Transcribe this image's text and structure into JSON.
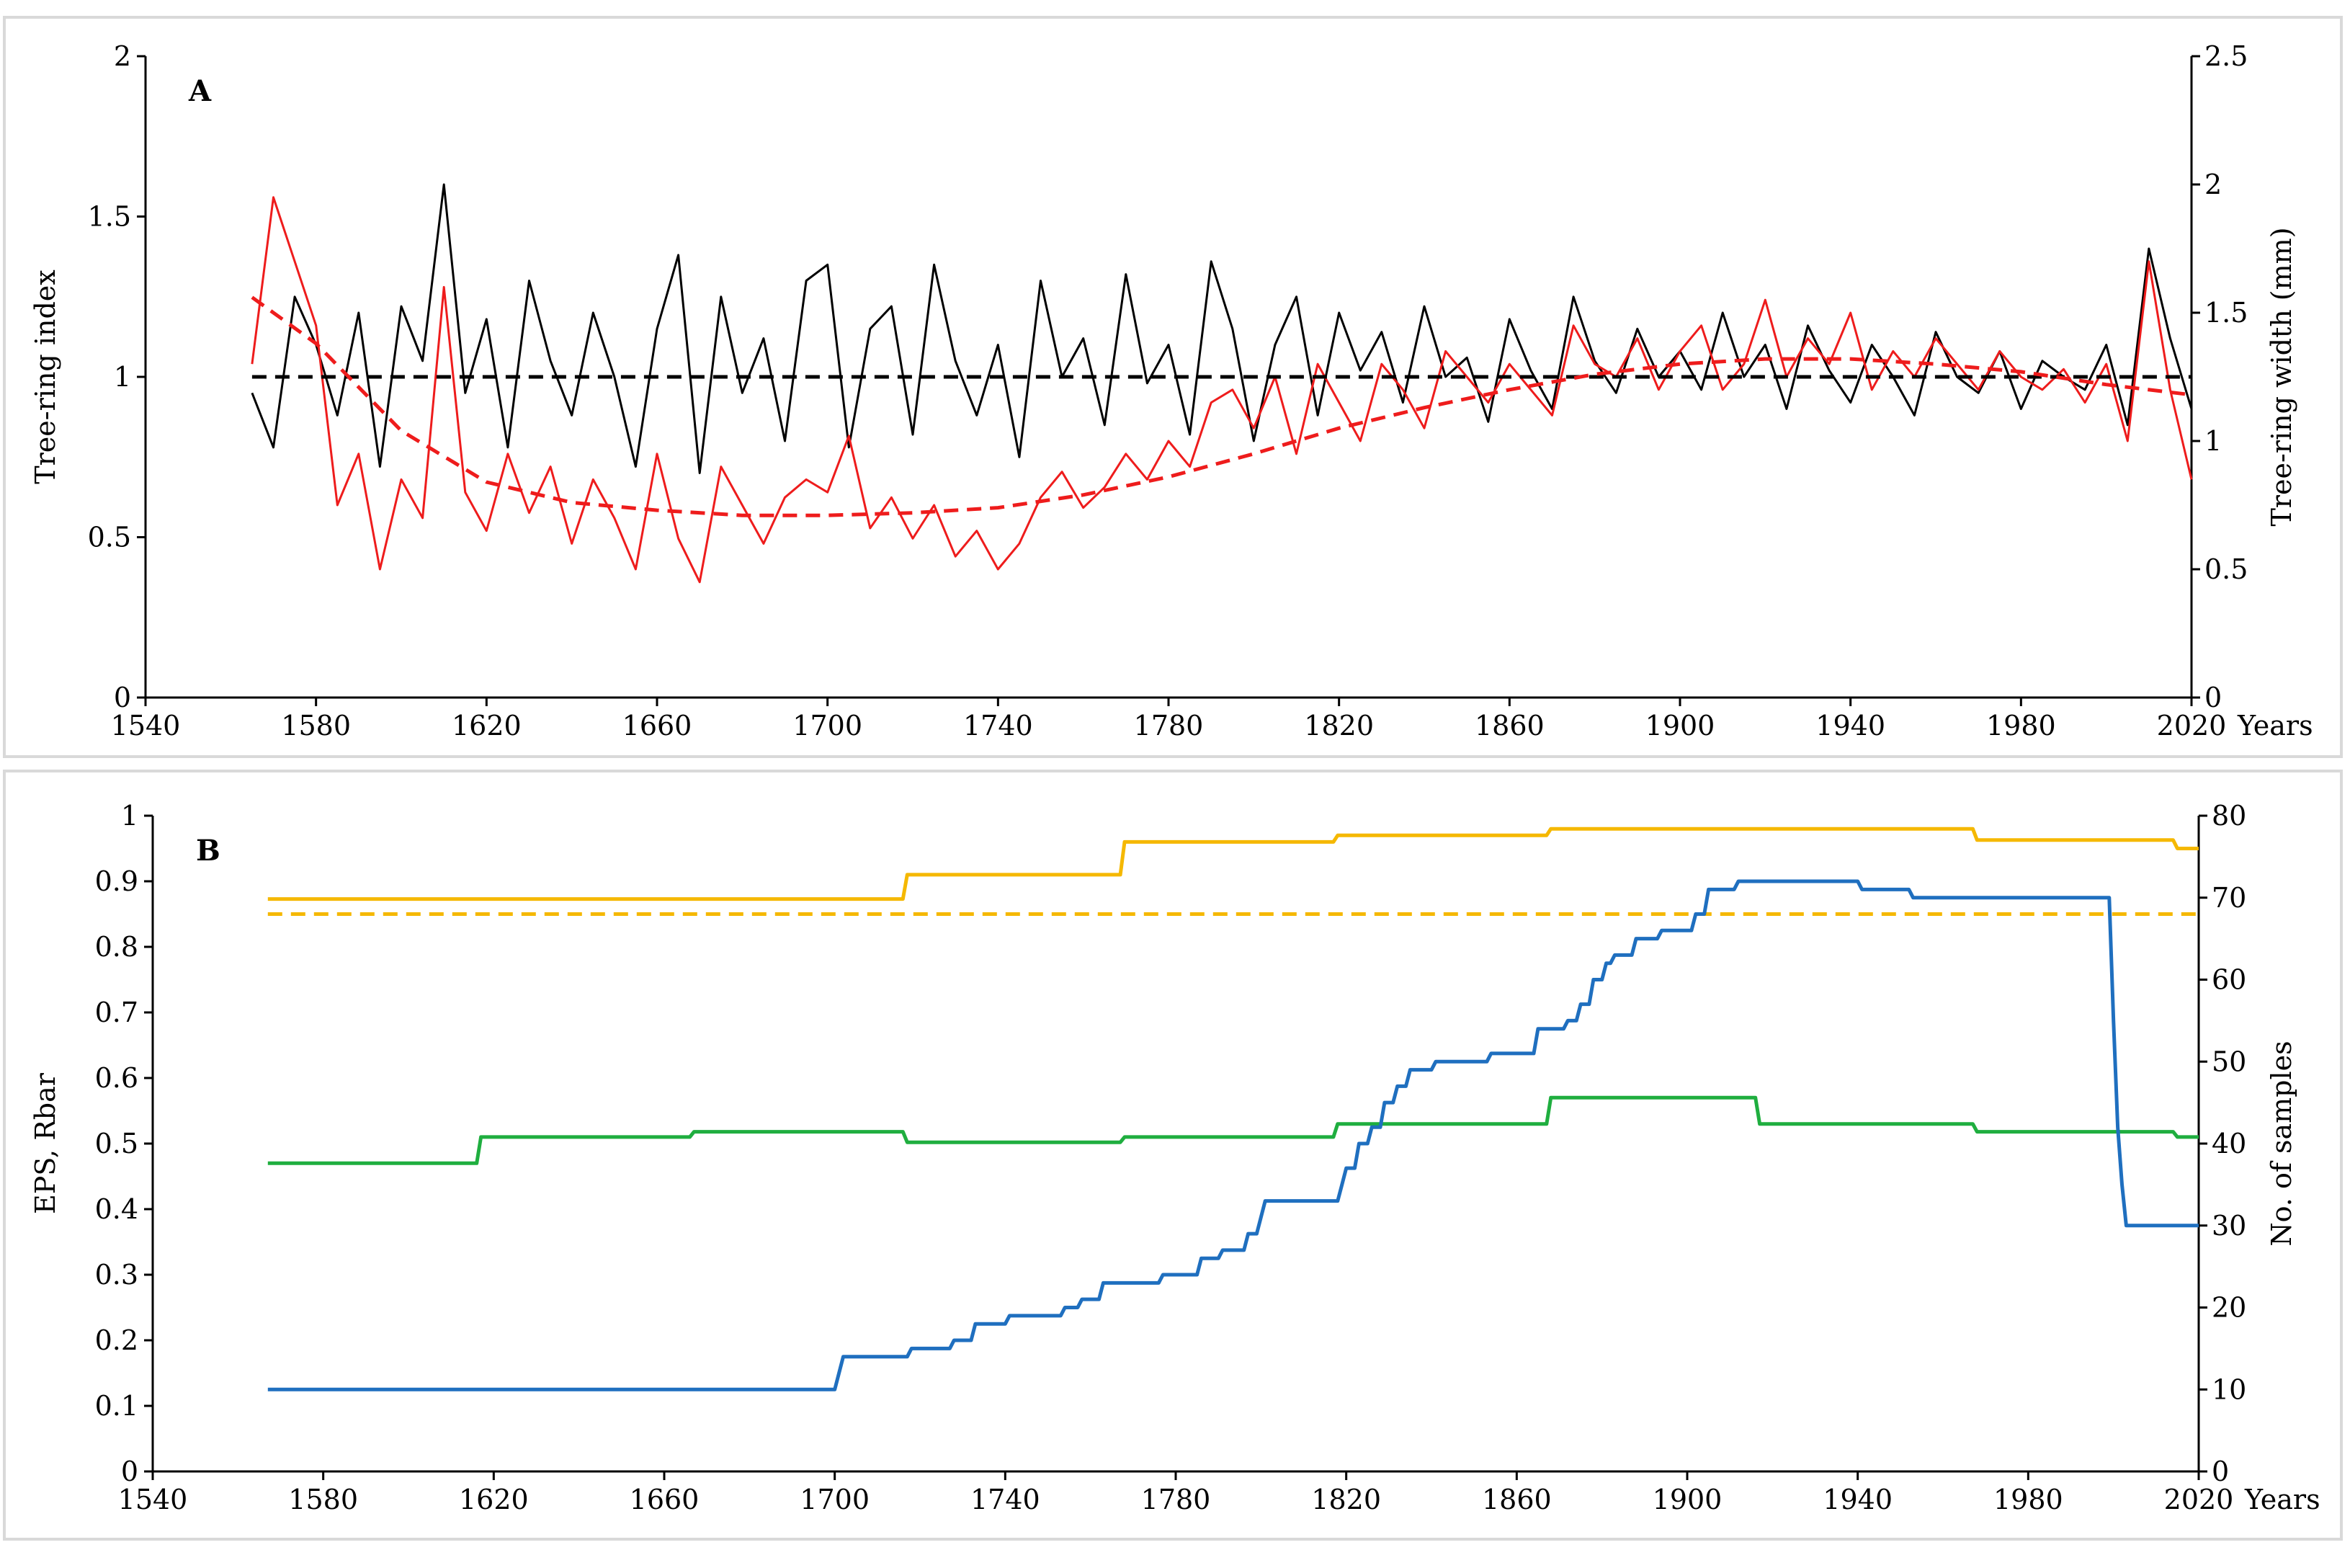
{
  "chart_data": [
    {
      "type": "line",
      "panel_label": "A",
      "xlabel": "Years",
      "ylabel": "Tree-ring index",
      "y2label": "Tree-ring width (mm)",
      "xlim": [
        1540,
        2020
      ],
      "ylim": [
        0,
        2
      ],
      "y2lim": [
        0,
        2.5
      ],
      "xticks": [
        "1540",
        "1580",
        "1620",
        "1660",
        "1700",
        "1740",
        "1780",
        "1820",
        "1860",
        "1900",
        "1940",
        "1980",
        "2020"
      ],
      "yticks": [
        "0",
        "0.5",
        "1",
        "1.5",
        "2"
      ],
      "y2ticks": [
        "0",
        "0.5",
        "1",
        "1.5",
        "2",
        "2.5"
      ],
      "colors": {
        "index": "#000000",
        "width": "#ee1c1c"
      },
      "series": [
        {
          "name": "Tree-ring index (black, left axis)",
          "axis": "left",
          "style": "solid",
          "x": [
            1565,
            1570,
            1575,
            1580,
            1585,
            1590,
            1595,
            1600,
            1605,
            1610,
            1615,
            1620,
            1625,
            1630,
            1635,
            1640,
            1645,
            1650,
            1655,
            1660,
            1665,
            1670,
            1675,
            1680,
            1685,
            1690,
            1695,
            1700,
            1705,
            1710,
            1715,
            1720,
            1725,
            1730,
            1735,
            1740,
            1745,
            1750,
            1755,
            1760,
            1765,
            1770,
            1775,
            1780,
            1785,
            1790,
            1795,
            1800,
            1805,
            1810,
            1815,
            1820,
            1825,
            1830,
            1835,
            1840,
            1845,
            1850,
            1855,
            1860,
            1865,
            1870,
            1875,
            1880,
            1885,
            1890,
            1895,
            1900,
            1905,
            1910,
            1915,
            1920,
            1925,
            1930,
            1935,
            1940,
            1945,
            1950,
            1955,
            1960,
            1965,
            1970,
            1975,
            1980,
            1985,
            1990,
            1995,
            2000,
            2005,
            2010,
            2015,
            2020
          ],
          "values": [
            0.95,
            0.78,
            1.25,
            1.1,
            0.88,
            1.2,
            0.72,
            1.22,
            1.05,
            1.6,
            0.95,
            1.18,
            0.78,
            1.3,
            1.05,
            0.88,
            1.2,
            1.0,
            0.72,
            1.15,
            1.38,
            0.7,
            1.25,
            0.95,
            1.12,
            0.8,
            1.3,
            1.35,
            0.78,
            1.15,
            1.22,
            0.82,
            1.35,
            1.05,
            0.88,
            1.1,
            0.75,
            1.3,
            1.0,
            1.12,
            0.85,
            1.32,
            0.98,
            1.1,
            0.82,
            1.36,
            1.15,
            0.8,
            1.1,
            1.25,
            0.88,
            1.2,
            1.02,
            1.14,
            0.92,
            1.22,
            1.0,
            1.06,
            0.86,
            1.18,
            1.02,
            0.9,
            1.25,
            1.05,
            0.95,
            1.15,
            1.0,
            1.08,
            0.96,
            1.2,
            1.0,
            1.1,
            0.9,
            1.16,
            1.02,
            0.92,
            1.1,
            1.0,
            0.88,
            1.14,
            1.0,
            0.95,
            1.08,
            0.9,
            1.05,
            1.0,
            0.96,
            1.1,
            0.85,
            1.4,
            1.12,
            0.9
          ]
        },
        {
          "name": "Tree-ring width (red, right axis)",
          "axis": "right",
          "style": "solid",
          "x": [
            1565,
            1570,
            1575,
            1580,
            1585,
            1590,
            1595,
            1600,
            1605,
            1610,
            1615,
            1620,
            1625,
            1630,
            1635,
            1640,
            1645,
            1650,
            1655,
            1660,
            1665,
            1670,
            1675,
            1680,
            1685,
            1690,
            1695,
            1700,
            1705,
            1710,
            1715,
            1720,
            1725,
            1730,
            1735,
            1740,
            1745,
            1750,
            1755,
            1760,
            1765,
            1770,
            1775,
            1780,
            1785,
            1790,
            1795,
            1800,
            1805,
            1810,
            1815,
            1820,
            1825,
            1830,
            1835,
            1840,
            1845,
            1850,
            1855,
            1860,
            1865,
            1870,
            1875,
            1880,
            1885,
            1890,
            1895,
            1900,
            1905,
            1910,
            1915,
            1920,
            1925,
            1930,
            1935,
            1940,
            1945,
            1950,
            1955,
            1960,
            1965,
            1970,
            1975,
            1980,
            1985,
            1990,
            1995,
            2000,
            2005,
            2010,
            2015,
            2020
          ],
          "values": [
            1.3,
            1.95,
            1.7,
            1.45,
            0.75,
            0.95,
            0.5,
            0.85,
            0.7,
            1.6,
            0.8,
            0.65,
            0.95,
            0.72,
            0.9,
            0.6,
            0.85,
            0.7,
            0.5,
            0.95,
            0.62,
            0.45,
            0.9,
            0.75,
            0.6,
            0.78,
            0.85,
            0.8,
            1.02,
            0.66,
            0.78,
            0.62,
            0.75,
            0.55,
            0.65,
            0.5,
            0.6,
            0.78,
            0.88,
            0.74,
            0.82,
            0.95,
            0.85,
            1.0,
            0.9,
            1.15,
            1.2,
            1.05,
            1.25,
            0.95,
            1.3,
            1.15,
            1.0,
            1.3,
            1.2,
            1.05,
            1.35,
            1.25,
            1.15,
            1.3,
            1.2,
            1.1,
            1.45,
            1.3,
            1.25,
            1.4,
            1.2,
            1.35,
            1.45,
            1.2,
            1.3,
            1.55,
            1.25,
            1.4,
            1.3,
            1.5,
            1.2,
            1.35,
            1.25,
            1.4,
            1.3,
            1.2,
            1.35,
            1.25,
            1.2,
            1.28,
            1.15,
            1.3,
            1.0,
            1.7,
            1.2,
            0.85
          ]
        },
        {
          "name": "Index mean (black dashed)",
          "axis": "left",
          "style": "dashed",
          "x": [
            1565,
            2020
          ],
          "values": [
            1.0,
            1.0
          ]
        },
        {
          "name": "Width trend (red dashed)",
          "axis": "right",
          "style": "dashed",
          "x": [
            1565,
            1580,
            1600,
            1620,
            1640,
            1660,
            1680,
            1700,
            1720,
            1740,
            1760,
            1780,
            1800,
            1820,
            1840,
            1860,
            1880,
            1900,
            1920,
            1940,
            1960,
            1980,
            2000,
            2020
          ],
          "values": [
            1.56,
            1.38,
            1.04,
            0.84,
            0.76,
            0.73,
            0.71,
            0.71,
            0.72,
            0.74,
            0.79,
            0.86,
            0.95,
            1.05,
            1.13,
            1.2,
            1.26,
            1.3,
            1.32,
            1.32,
            1.3,
            1.27,
            1.22,
            1.18
          ]
        }
      ]
    },
    {
      "type": "line",
      "panel_label": "B",
      "xlabel": "Years",
      "ylabel": "EPS, Rbar",
      "y2label": "No. of samples",
      "xlim": [
        1540,
        2020
      ],
      "ylim": [
        0,
        1
      ],
      "y2lim": [
        0,
        80
      ],
      "xticks": [
        "1540",
        "1580",
        "1620",
        "1660",
        "1700",
        "1740",
        "1780",
        "1820",
        "1860",
        "1900",
        "1940",
        "1980",
        "2020"
      ],
      "yticks": [
        "0",
        "0.1",
        "0.2",
        "0.3",
        "0.4",
        "0.5",
        "0.6",
        "0.7",
        "0.8",
        "0.9",
        "1"
      ],
      "y2ticks": [
        "0",
        "10",
        "20",
        "30",
        "40",
        "50",
        "60",
        "70",
        "80"
      ],
      "colors": {
        "eps": "#f5b800",
        "threshold": "#f5b800",
        "rbar": "#1fae3f",
        "samples": "#1f6fbf"
      },
      "series": [
        {
          "name": "EPS (yellow)",
          "axis": "left",
          "style": "step",
          "x": [
            1567,
            1716,
            1717,
            1767,
            1768,
            1817,
            1818,
            1867,
            1868,
            1967,
            1968,
            2014,
            2015,
            2020
          ],
          "values": [
            0.873,
            0.873,
            0.91,
            0.91,
            0.96,
            0.96,
            0.97,
            0.97,
            0.98,
            0.98,
            0.963,
            0.963,
            0.95,
            0.95
          ]
        },
        {
          "name": "EPS threshold 0.85 (yellow dashed)",
          "axis": "left",
          "style": "dashed",
          "x": [
            1567,
            2020
          ],
          "values": [
            0.85,
            0.85
          ]
        },
        {
          "name": "Rbar (green)",
          "axis": "left",
          "style": "step",
          "x": [
            1567,
            1616,
            1617,
            1666,
            1667,
            1716,
            1717,
            1767,
            1768,
            1817,
            1818,
            1867,
            1868,
            1916,
            1917,
            1967,
            1968,
            2014,
            2015,
            2020
          ],
          "values": [
            0.47,
            0.47,
            0.51,
            0.51,
            0.518,
            0.518,
            0.502,
            0.502,
            0.51,
            0.51,
            0.53,
            0.53,
            0.57,
            0.57,
            0.53,
            0.53,
            0.518,
            0.518,
            0.51,
            0.51
          ]
        },
        {
          "name": "No. of samples (blue, right axis)",
          "axis": "right",
          "style": "step",
          "x": [
            1567,
            1700,
            1701,
            1702,
            1717,
            1718,
            1727,
            1728,
            1732,
            1733,
            1740,
            1741,
            1753,
            1754,
            1757,
            1758,
            1762,
            1763,
            1776,
            1777,
            1785,
            1786,
            1790,
            1791,
            1796,
            1797,
            1799,
            1800,
            1801,
            1818,
            1819,
            1820,
            1822,
            1823,
            1825,
            1826,
            1828,
            1829,
            1831,
            1832,
            1834,
            1835,
            1840,
            1841,
            1853,
            1854,
            1864,
            1865,
            1871,
            1872,
            1874,
            1875,
            1877,
            1878,
            1880,
            1881,
            1882,
            1883,
            1887,
            1888,
            1893,
            1894,
            1901,
            1902,
            1904,
            1905,
            1911,
            1912,
            1920,
            1921,
            1940,
            1941,
            1952,
            1953,
            1998,
            1999,
            2000,
            2001,
            2002,
            2003,
            2020
          ],
          "values": [
            10,
            10,
            12,
            14,
            14,
            15,
            15,
            16,
            16,
            18,
            18,
            19,
            19,
            20,
            20,
            21,
            21,
            23,
            23,
            24,
            24,
            26,
            26,
            27,
            27,
            29,
            29,
            31,
            33,
            33,
            35,
            37,
            37,
            40,
            40,
            42,
            42,
            45,
            45,
            47,
            47,
            49,
            49,
            50,
            50,
            51,
            51,
            54,
            54,
            55,
            55,
            57,
            57,
            60,
            60,
            62,
            62,
            63,
            63,
            65,
            65,
            66,
            66,
            68,
            68,
            71,
            71,
            72,
            72,
            72,
            72,
            71,
            71,
            70,
            70,
            70,
            55,
            42,
            35,
            30,
            30
          ]
        }
      ]
    }
  ]
}
